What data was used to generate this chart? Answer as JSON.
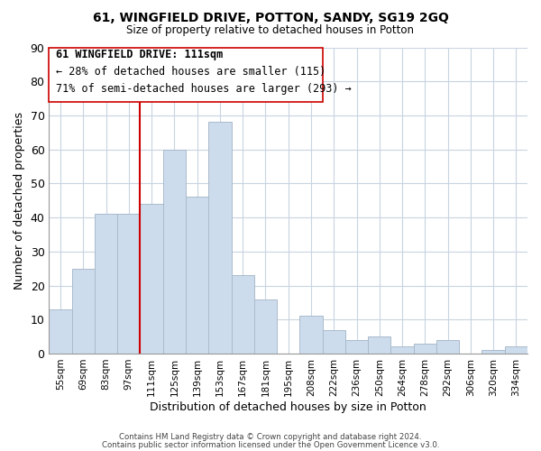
{
  "title": "61, WINGFIELD DRIVE, POTTON, SANDY, SG19 2GQ",
  "subtitle": "Size of property relative to detached houses in Potton",
  "xlabel": "Distribution of detached houses by size in Potton",
  "ylabel": "Number of detached properties",
  "categories": [
    "55sqm",
    "69sqm",
    "83sqm",
    "97sqm",
    "111sqm",
    "125sqm",
    "139sqm",
    "153sqm",
    "167sqm",
    "181sqm",
    "195sqm",
    "208sqm",
    "222sqm",
    "236sqm",
    "250sqm",
    "264sqm",
    "278sqm",
    "292sqm",
    "306sqm",
    "320sqm",
    "334sqm"
  ],
  "values": [
    13,
    25,
    41,
    41,
    44,
    60,
    46,
    68,
    23,
    16,
    0,
    11,
    7,
    4,
    5,
    2,
    3,
    4,
    0,
    1,
    2
  ],
  "bar_color": "#ccdcec",
  "bar_edge_color": "#aabbcc",
  "vline_x": 4,
  "vline_color": "#cc0000",
  "ylim": [
    0,
    90
  ],
  "yticks": [
    0,
    10,
    20,
    30,
    40,
    50,
    60,
    70,
    80,
    90
  ],
  "annotation_title": "61 WINGFIELD DRIVE: 111sqm",
  "annotation_line1": "← 28% of detached houses are smaller (115)",
  "annotation_line2": "71% of semi-detached houses are larger (293) →",
  "footer1": "Contains HM Land Registry data © Crown copyright and database right 2024.",
  "footer2": "Contains public sector information licensed under the Open Government Licence v3.0.",
  "background_color": "#ffffff",
  "grid_color": "#c8d4e0"
}
